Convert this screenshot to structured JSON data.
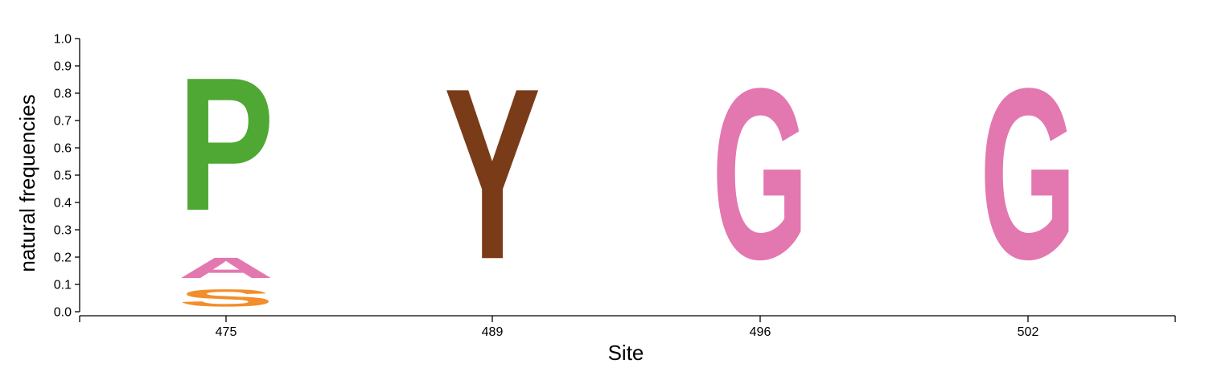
{
  "chart_data": {
    "type": "sequence-logo",
    "title": "",
    "xlabel": "Site",
    "ylabel": "natural frequencies",
    "ylim": [
      0,
      1.0
    ],
    "yticks": [
      "0.0",
      "0.1",
      "0.2",
      "0.3",
      "0.4",
      "0.5",
      "0.6",
      "0.7",
      "0.8",
      "0.9",
      "1.0"
    ],
    "sites": [
      {
        "label": "475",
        "letters": [
          {
            "letter": "S",
            "frequency": 0.1,
            "color": "#f28e2b"
          },
          {
            "letter": "A",
            "frequency": 0.12,
            "color": "#e377b0"
          },
          {
            "letter": "P",
            "frequency": 0.78,
            "color": "#4ea833"
          }
        ]
      },
      {
        "label": "489",
        "letters": [
          {
            "letter": "Y",
            "frequency": 1.0,
            "color": "#7a3b18"
          }
        ]
      },
      {
        "label": "496",
        "letters": [
          {
            "letter": "G",
            "frequency": 1.0,
            "color": "#e377b0"
          }
        ]
      },
      {
        "label": "502",
        "letters": [
          {
            "letter": "G",
            "frequency": 1.0,
            "color": "#e377b0"
          }
        ]
      }
    ]
  }
}
